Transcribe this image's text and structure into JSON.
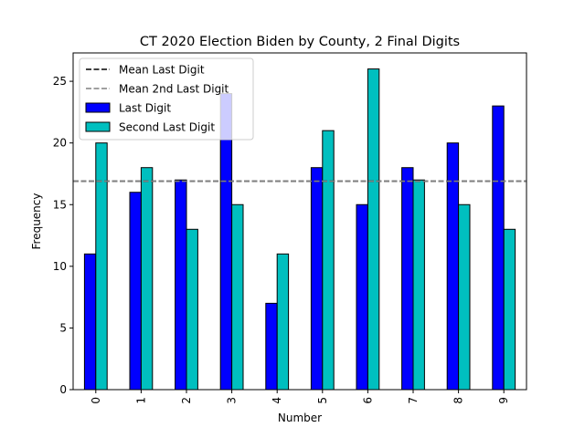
{
  "chart_data": {
    "type": "bar",
    "title": "CT 2020 Election Biden by County, 2 Final Digits",
    "xlabel": "Number",
    "ylabel": "Frequency",
    "categories": [
      "0",
      "1",
      "2",
      "3",
      "4",
      "5",
      "6",
      "7",
      "8",
      "9"
    ],
    "series": [
      {
        "name": "Last Digit",
        "color": "#0000ff",
        "values": [
          11,
          16,
          17,
          24,
          7,
          18,
          15,
          18,
          20,
          23
        ]
      },
      {
        "name": "Second Last Digit",
        "color": "#00bfbf",
        "values": [
          20,
          18,
          13,
          15,
          11,
          21,
          26,
          17,
          15,
          13
        ]
      }
    ],
    "reference_lines": [
      {
        "name": "Mean Last Digit",
        "value": 16.9,
        "color": "#000000",
        "style": "dashed"
      },
      {
        "name": "Mean 2nd Last Digit",
        "value": 16.9,
        "color": "#808080",
        "style": "dashed"
      }
    ],
    "ylim": [
      0,
      27.3
    ],
    "yticks": [
      0,
      5,
      10,
      15,
      20,
      25
    ],
    "xtick_rotation": 90,
    "grid": false,
    "legend_position": "top-left"
  }
}
